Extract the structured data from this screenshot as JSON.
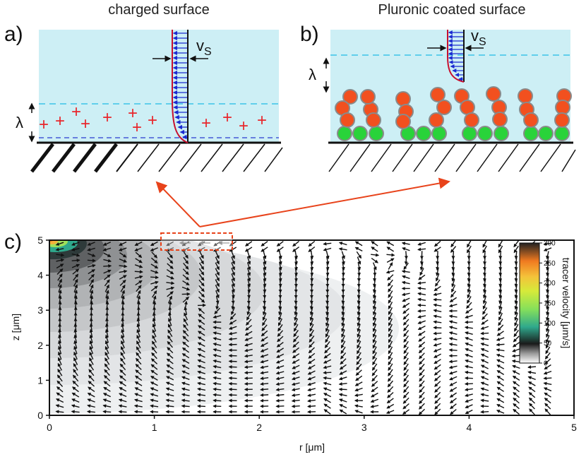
{
  "panel_a": {
    "label": "a)",
    "title": "charged surface",
    "slip_velocity_symbol": "v",
    "slip_velocity_subscript": "S",
    "debye_length_symbol": "λ",
    "charge_symbol": "+"
  },
  "panel_b": {
    "label": "b)",
    "title": "Pluronic coated surface",
    "slip_velocity_symbol": "v",
    "slip_velocity_subscript": "S",
    "debye_length_symbol": "λ"
  },
  "panel_c": {
    "label": "c)"
  },
  "colors": {
    "fluid": "#cdeff5",
    "accent_red": "#e8431b",
    "ppo_ball": "#f2501f",
    "peo_ball": "#29d33a",
    "flow_arrow": "#1b2bd1",
    "profile_line": "#c8102e",
    "dashed_line": "#3cc4e8"
  },
  "chart_data": {
    "type": "heatmap",
    "title": "",
    "xlabel": "r [μm]",
    "ylabel": "z [μm]",
    "xlim": [
      0,
      5
    ],
    "ylim": [
      0,
      5
    ],
    "xticks": [
      "0",
      "1",
      "2",
      "3",
      "4",
      "5"
    ],
    "yticks": [
      "0",
      "1",
      "2",
      "3",
      "4",
      "5"
    ],
    "colorbar": {
      "label": "tracer velocity [μm/s]",
      "range": [
        0,
        300
      ],
      "ticks": [
        "0",
        "50",
        "100",
        "150",
        "200",
        "250",
        "300"
      ],
      "colormap": [
        "#ffffff",
        "#1a1a1a",
        "#2fa88c",
        "#86e05a",
        "#f4d23a",
        "#f07a20",
        "#222222"
      ]
    },
    "field_contours": [
      {
        "level": "high (>250 μm/s)",
        "center_r": 0.05,
        "center_z": 4.95,
        "extent_r": 0.15,
        "extent_z": 0.08
      },
      {
        "level": "100-200 μm/s",
        "center_r": 0.1,
        "center_z": 4.85,
        "extent_r": 0.5,
        "extent_z": 0.25
      },
      {
        "level": "~50 μm/s",
        "center_r": 0.2,
        "center_z": 4.5,
        "extent_r": 1.0,
        "extent_z": 0.8
      },
      {
        "level": "~30 μm/s",
        "center_r": 0.3,
        "center_z": 4.1,
        "extent_r": 1.8,
        "extent_z": 1.4
      },
      {
        "level": "~15 μm/s",
        "center_r": 0.3,
        "center_z": 3.5,
        "extent_r": 2.8,
        "extent_z": 2.4
      },
      {
        "level": "~5 μm/s",
        "center_r": 0.3,
        "center_z": 2.8,
        "extent_r": 4.0,
        "extent_z": 3.0
      }
    ],
    "highlight_box_r": [
      1.05,
      1.75
    ],
    "highlight_box_z": [
      4.7,
      5.0
    ],
    "vector_field": "arrows on grid r 0.1-4.85 (step 0.15), z 0.1-4.9 (step 0.16); near-wall flow points toward -r (toward origin), deeper flow returns along +r"
  }
}
